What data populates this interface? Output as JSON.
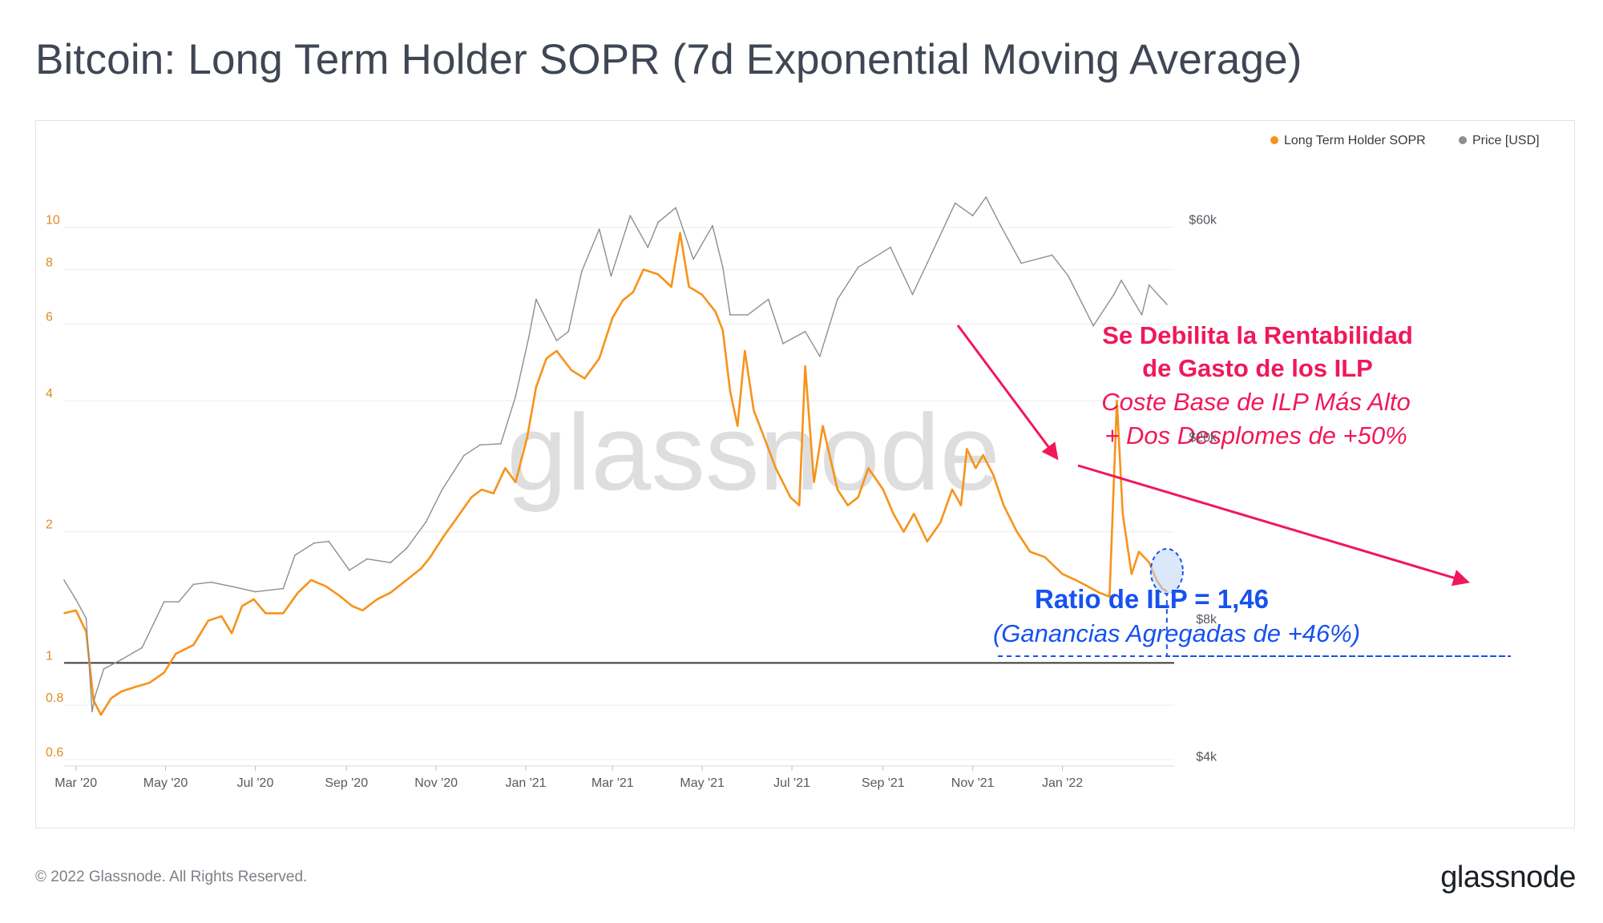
{
  "title": "Bitcoin: Long Term Holder SOPR (7d Exponential Moving Average)",
  "footer": {
    "copyright": "© 2022 Glassnode. All Rights Reserved.",
    "logo": "glassnode"
  },
  "watermark": "glassnode",
  "colors": {
    "sopr": "#f7931a",
    "price": "#8e8e8e",
    "annotation_red": "#f0185a",
    "annotation_blue": "#1652f0",
    "baseline": "#3a3a3a",
    "highlight_fill": "#bcd6f5"
  },
  "annotations": {
    "headline_line1": "Se Debilita la Rentabilidad",
    "headline_line2": "de Gasto de los ILP",
    "sub_line1": "Coste Base de ILP Más Alto",
    "sub_line2": "+ Dos Desplomes de +50%",
    "ratio_label": "Ratio de ILP = 1,46",
    "ratio_sub": "(Ganancias Agregadas de +46%)"
  },
  "chart_data": {
    "type": "line",
    "title": "Bitcoin: Long Term Holder SOPR (7d Exponential Moving Average)",
    "legend": {
      "placement": "top-right",
      "entries": [
        "Long Term Holder SOPR",
        "Price [USD]"
      ]
    },
    "x_axis": {
      "ticks": [
        "Mar '20",
        "May '20",
        "Jul '20",
        "Sep '20",
        "Nov '20",
        "Jan '21",
        "Mar '21",
        "May '21",
        "Jul '21",
        "Sep '21",
        "Nov '21",
        "Jan '22"
      ],
      "range": [
        "2020-02-22",
        "2022-03-18"
      ]
    },
    "y_left": {
      "scale": "log",
      "ticks": [
        "0.6",
        "0.8",
        "1",
        "2",
        "4",
        "6",
        "8",
        "10"
      ],
      "range": [
        0.58,
        14.5
      ]
    },
    "y_right": {
      "scale": "log",
      "ticks": [
        "$4k",
        "$8k",
        "$20k",
        "$60k"
      ],
      "range": [
        3800,
        82000
      ]
    },
    "reference_line": {
      "axis": "left",
      "value": 1
    },
    "grid": "horizontal",
    "series": [
      {
        "name": "Long Term Holder SOPR",
        "axis": "left",
        "color": "#f7931a",
        "points": [
          [
            "2020-02-22",
            1.3
          ],
          [
            "2020-03-01",
            1.32
          ],
          [
            "2020-03-08",
            1.18
          ],
          [
            "2020-03-13",
            0.82
          ],
          [
            "2020-03-18",
            0.76
          ],
          [
            "2020-03-25",
            0.83
          ],
          [
            "2020-04-01",
            0.86
          ],
          [
            "2020-04-10",
            0.88
          ],
          [
            "2020-04-20",
            0.9
          ],
          [
            "2020-04-30",
            0.95
          ],
          [
            "2020-05-08",
            1.05
          ],
          [
            "2020-05-20",
            1.1
          ],
          [
            "2020-05-30",
            1.25
          ],
          [
            "2020-06-08",
            1.28
          ],
          [
            "2020-06-15",
            1.17
          ],
          [
            "2020-06-22",
            1.35
          ],
          [
            "2020-06-30",
            1.4
          ],
          [
            "2020-07-08",
            1.3
          ],
          [
            "2020-07-20",
            1.3
          ],
          [
            "2020-07-30",
            1.45
          ],
          [
            "2020-08-08",
            1.55
          ],
          [
            "2020-08-18",
            1.5
          ],
          [
            "2020-08-28",
            1.42
          ],
          [
            "2020-09-05",
            1.35
          ],
          [
            "2020-09-12",
            1.32
          ],
          [
            "2020-09-22",
            1.4
          ],
          [
            "2020-10-01",
            1.45
          ],
          [
            "2020-10-12",
            1.55
          ],
          [
            "2020-10-22",
            1.65
          ],
          [
            "2020-10-28",
            1.75
          ],
          [
            "2020-11-06",
            1.95
          ],
          [
            "2020-11-15",
            2.15
          ],
          [
            "2020-11-25",
            2.4
          ],
          [
            "2020-12-02",
            2.5
          ],
          [
            "2020-12-10",
            2.45
          ],
          [
            "2020-12-18",
            2.8
          ],
          [
            "2020-12-25",
            2.6
          ],
          [
            "2021-01-02",
            3.3
          ],
          [
            "2021-01-08",
            4.3
          ],
          [
            "2021-01-15",
            5.0
          ],
          [
            "2021-01-22",
            5.2
          ],
          [
            "2021-02-01",
            4.7
          ],
          [
            "2021-02-10",
            4.5
          ],
          [
            "2021-02-20",
            5.0
          ],
          [
            "2021-03-01",
            6.2
          ],
          [
            "2021-03-08",
            6.8
          ],
          [
            "2021-03-15",
            7.1
          ],
          [
            "2021-03-22",
            8.0
          ],
          [
            "2021-04-01",
            7.8
          ],
          [
            "2021-04-10",
            7.3
          ],
          [
            "2021-04-16",
            9.7
          ],
          [
            "2021-04-22",
            7.3
          ],
          [
            "2021-05-01",
            7.0
          ],
          [
            "2021-05-10",
            6.4
          ],
          [
            "2021-05-15",
            5.8
          ],
          [
            "2021-05-20",
            4.2
          ],
          [
            "2021-05-25",
            3.5
          ],
          [
            "2021-05-30",
            5.2
          ],
          [
            "2021-06-05",
            3.8
          ],
          [
            "2021-06-12",
            3.3
          ],
          [
            "2021-06-20",
            2.8
          ],
          [
            "2021-06-30",
            2.4
          ],
          [
            "2021-07-06",
            2.3
          ],
          [
            "2021-07-10",
            4.8
          ],
          [
            "2021-07-16",
            2.6
          ],
          [
            "2021-07-22",
            3.5
          ],
          [
            "2021-08-01",
            2.5
          ],
          [
            "2021-08-08",
            2.3
          ],
          [
            "2021-08-15",
            2.4
          ],
          [
            "2021-08-22",
            2.8
          ],
          [
            "2021-09-01",
            2.5
          ],
          [
            "2021-09-08",
            2.2
          ],
          [
            "2021-09-15",
            2.0
          ],
          [
            "2021-09-22",
            2.2
          ],
          [
            "2021-10-01",
            1.9
          ],
          [
            "2021-10-10",
            2.1
          ],
          [
            "2021-10-18",
            2.5
          ],
          [
            "2021-10-24",
            2.3
          ],
          [
            "2021-10-28",
            3.1
          ],
          [
            "2021-11-03",
            2.8
          ],
          [
            "2021-11-08",
            3.0
          ],
          [
            "2021-11-15",
            2.7
          ],
          [
            "2021-11-22",
            2.3
          ],
          [
            "2021-12-01",
            2.0
          ],
          [
            "2021-12-10",
            1.8
          ],
          [
            "2021-12-20",
            1.75
          ],
          [
            "2022-01-01",
            1.6
          ],
          [
            "2022-01-10",
            1.55
          ],
          [
            "2022-01-18",
            1.5
          ],
          [
            "2022-01-26",
            1.45
          ],
          [
            "2022-02-02",
            1.42
          ],
          [
            "2022-02-07",
            4.0
          ],
          [
            "2022-02-11",
            2.2
          ],
          [
            "2022-02-17",
            1.6
          ],
          [
            "2022-02-22",
            1.8
          ],
          [
            "2022-03-01",
            1.7
          ],
          [
            "2022-03-06",
            1.55
          ],
          [
            "2022-03-10",
            1.48
          ],
          [
            "2022-03-13",
            1.46
          ]
        ]
      },
      {
        "name": "Price [USD]",
        "axis": "right",
        "color": "#8e8e8e",
        "points": [
          [
            "2020-02-22",
            9700
          ],
          [
            "2020-03-01",
            8800
          ],
          [
            "2020-03-08",
            8000
          ],
          [
            "2020-03-12",
            5000
          ],
          [
            "2020-03-14",
            5400
          ],
          [
            "2020-03-20",
            6200
          ],
          [
            "2020-04-01",
            6500
          ],
          [
            "2020-04-15",
            6900
          ],
          [
            "2020-04-30",
            8700
          ],
          [
            "2020-05-10",
            8700
          ],
          [
            "2020-05-20",
            9500
          ],
          [
            "2020-06-01",
            9600
          ],
          [
            "2020-06-15",
            9400
          ],
          [
            "2020-07-01",
            9150
          ],
          [
            "2020-07-20",
            9300
          ],
          [
            "2020-07-28",
            11000
          ],
          [
            "2020-08-10",
            11700
          ],
          [
            "2020-08-20",
            11800
          ],
          [
            "2020-09-03",
            10200
          ],
          [
            "2020-09-15",
            10800
          ],
          [
            "2020-10-01",
            10600
          ],
          [
            "2020-10-12",
            11400
          ],
          [
            "2020-10-25",
            13000
          ],
          [
            "2020-11-05",
            15300
          ],
          [
            "2020-11-20",
            18200
          ],
          [
            "2020-12-01",
            19200
          ],
          [
            "2020-12-15",
            19300
          ],
          [
            "2020-12-25",
            24500
          ],
          [
            "2021-01-03",
            33000
          ],
          [
            "2021-01-08",
            40000
          ],
          [
            "2021-01-15",
            36000
          ],
          [
            "2021-01-22",
            32500
          ],
          [
            "2021-01-30",
            34000
          ],
          [
            "2021-02-08",
            46000
          ],
          [
            "2021-02-20",
            57000
          ],
          [
            "2021-02-28",
            45000
          ],
          [
            "2021-03-13",
            61000
          ],
          [
            "2021-03-25",
            52000
          ],
          [
            "2021-04-01",
            59000
          ],
          [
            "2021-04-13",
            63500
          ],
          [
            "2021-04-25",
            49000
          ],
          [
            "2021-05-08",
            58000
          ],
          [
            "2021-05-15",
            47000
          ],
          [
            "2021-05-20",
            37000
          ],
          [
            "2021-06-01",
            37000
          ],
          [
            "2021-06-15",
            40000
          ],
          [
            "2021-06-25",
            32000
          ],
          [
            "2021-07-10",
            34000
          ],
          [
            "2021-07-20",
            30000
          ],
          [
            "2021-08-01",
            40000
          ],
          [
            "2021-08-15",
            47000
          ],
          [
            "2021-09-06",
            52000
          ],
          [
            "2021-09-21",
            41000
          ],
          [
            "2021-10-01",
            48000
          ],
          [
            "2021-10-15",
            60000
          ],
          [
            "2021-10-20",
            65000
          ],
          [
            "2021-11-01",
            61000
          ],
          [
            "2021-11-10",
            67000
          ],
          [
            "2021-11-20",
            58000
          ],
          [
            "2021-12-04",
            48000
          ],
          [
            "2021-12-25",
            50000
          ],
          [
            "2022-01-05",
            45000
          ],
          [
            "2022-01-22",
            35000
          ],
          [
            "2022-02-05",
            41000
          ],
          [
            "2022-02-10",
            44000
          ],
          [
            "2022-02-24",
            37000
          ],
          [
            "2022-03-01",
            43000
          ],
          [
            "2022-03-13",
            39000
          ]
        ]
      }
    ]
  }
}
